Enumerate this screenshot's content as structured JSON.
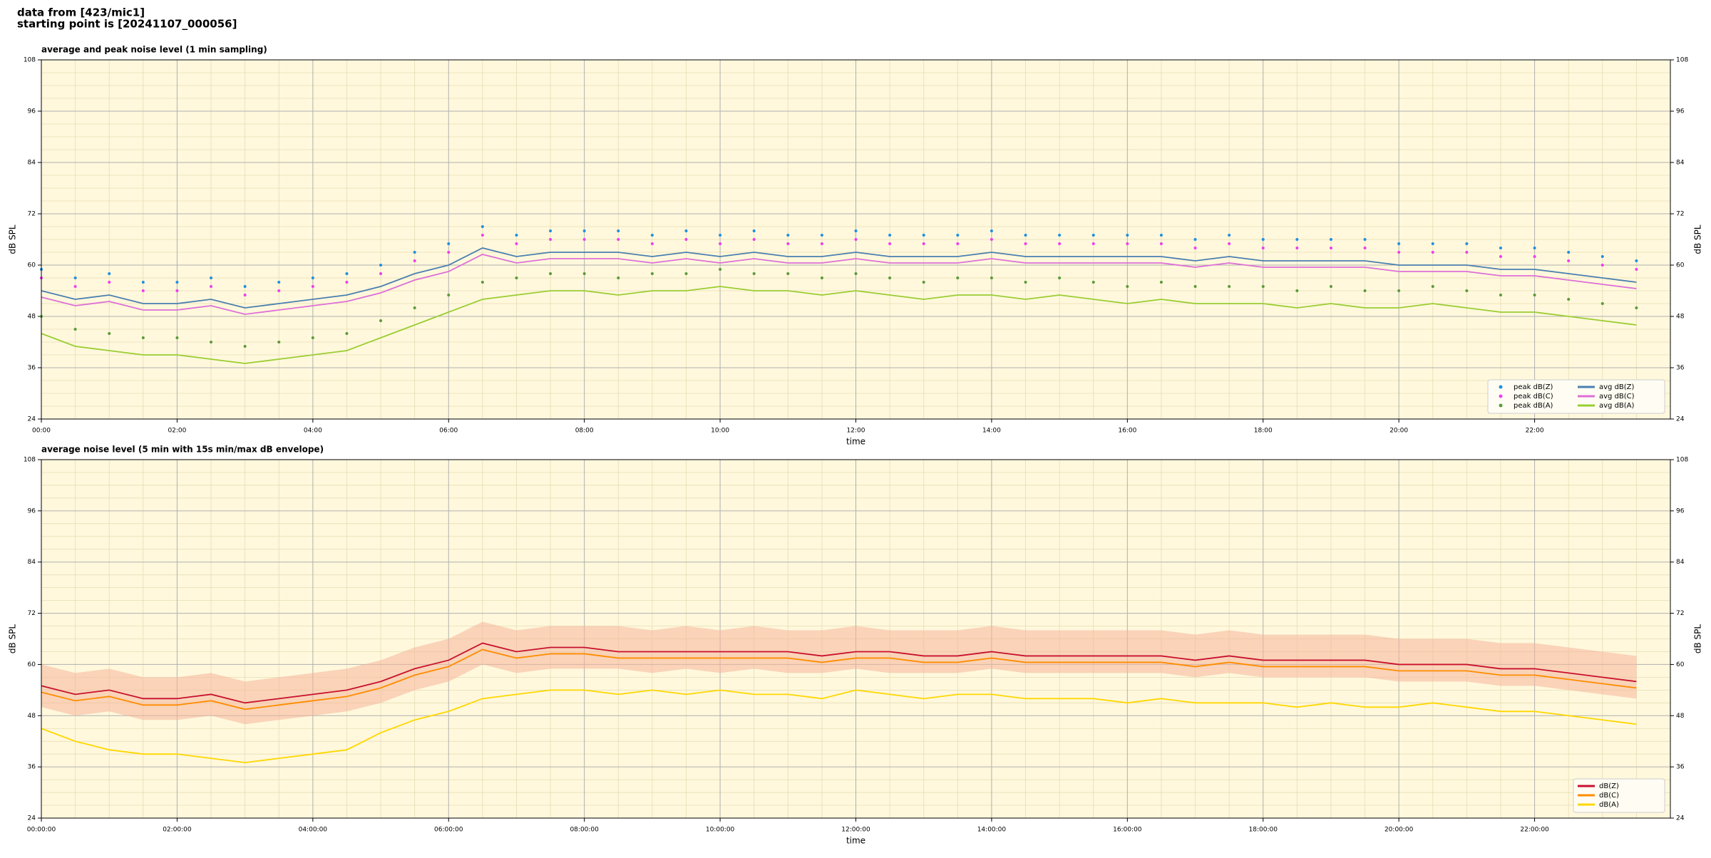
{
  "header": [
    "data from [423/mic1]",
    "starting point is [20241107_000056]"
  ],
  "chart_data": [
    {
      "type": "line",
      "title": "average and peak noise level (1 min sampling)",
      "xlabel": "time",
      "ylabel": "dB SPL",
      "x": [
        0,
        0.5,
        1,
        1.5,
        2,
        2.5,
        3,
        3.5,
        4,
        4.5,
        5,
        5.5,
        6,
        6.5,
        7,
        7.5,
        8,
        8.5,
        9,
        9.5,
        10,
        10.5,
        11,
        11.5,
        12,
        12.5,
        13,
        13.5,
        14,
        14.5,
        15,
        15.5,
        16,
        16.5,
        17,
        17.5,
        18,
        18.5,
        19,
        19.5,
        20,
        20.5,
        21,
        21.5,
        22,
        22.5,
        23,
        23.5
      ],
      "xlim": [
        0,
        24
      ],
      "xticks": [
        {
          "value": 0,
          "label": "00:00"
        },
        {
          "value": 2,
          "label": "02:00"
        },
        {
          "value": 4,
          "label": "04:00"
        },
        {
          "value": 6,
          "label": "06:00"
        },
        {
          "value": 8,
          "label": "08:00"
        },
        {
          "value": 10,
          "label": "10:00"
        },
        {
          "value": 12,
          "label": "12:00"
        },
        {
          "value": 14,
          "label": "14:00"
        },
        {
          "value": 16,
          "label": "16:00"
        },
        {
          "value": 18,
          "label": "18:00"
        },
        {
          "value": 20,
          "label": "20:00"
        },
        {
          "value": 22,
          "label": "22:00"
        }
      ],
      "ylim": [
        24,
        108
      ],
      "yticks": [
        24,
        36,
        48,
        60,
        72,
        84,
        96,
        108
      ],
      "grid": true,
      "legend": "lower right",
      "legend_columns": 2,
      "series": [
        {
          "name": "peak dB(Z)",
          "kind": "scatter",
          "color": "#1f8fe0",
          "values": [
            59,
            57,
            58,
            56,
            56,
            57,
            55,
            56,
            57,
            58,
            60,
            63,
            65,
            69,
            67,
            68,
            68,
            68,
            67,
            68,
            67,
            68,
            67,
            67,
            68,
            67,
            67,
            67,
            68,
            67,
            67,
            67,
            67,
            67,
            66,
            67,
            66,
            66,
            66,
            66,
            65,
            65,
            65,
            64,
            64,
            63,
            62,
            61
          ]
        },
        {
          "name": "peak dB(C)",
          "kind": "scatter",
          "color": "#f03cf0",
          "values": [
            57,
            55,
            56,
            54,
            54,
            55,
            53,
            54,
            55,
            56,
            58,
            61,
            63,
            67,
            65,
            66,
            66,
            66,
            65,
            66,
            65,
            66,
            65,
            65,
            66,
            65,
            65,
            65,
            66,
            65,
            65,
            65,
            65,
            65,
            64,
            65,
            64,
            64,
            64,
            64,
            63,
            63,
            63,
            62,
            62,
            61,
            60,
            59
          ]
        },
        {
          "name": "peak dB(A)",
          "kind": "scatter",
          "color": "#5a9a3a",
          "values": [
            48,
            45,
            44,
            43,
            43,
            42,
            41,
            42,
            43,
            44,
            47,
            50,
            53,
            56,
            57,
            58,
            58,
            57,
            58,
            58,
            59,
            58,
            58,
            57,
            58,
            57,
            56,
            57,
            57,
            56,
            57,
            56,
            55,
            56,
            55,
            55,
            55,
            54,
            55,
            54,
            54,
            55,
            54,
            53,
            53,
            52,
            51,
            50
          ]
        },
        {
          "name": "avg dB(Z)",
          "kind": "line",
          "color": "#4a7fb0",
          "values": [
            54,
            52,
            53,
            51,
            51,
            52,
            50,
            51,
            52,
            53,
            55,
            58,
            60,
            64,
            62,
            63,
            63,
            63,
            62,
            63,
            62,
            63,
            62,
            62,
            63,
            62,
            62,
            62,
            63,
            62,
            62,
            62,
            62,
            62,
            61,
            62,
            61,
            61,
            61,
            61,
            60,
            60,
            60,
            59,
            59,
            58,
            57,
            56
          ]
        },
        {
          "name": "avg dB(C)",
          "kind": "line",
          "color": "#dd6fd8",
          "values": [
            52.5,
            50.5,
            51.5,
            49.5,
            49.5,
            50.5,
            48.5,
            49.5,
            50.5,
            51.5,
            53.5,
            56.5,
            58.5,
            62.5,
            60.5,
            61.5,
            61.5,
            61.5,
            60.5,
            61.5,
            60.5,
            61.5,
            60.5,
            60.5,
            61.5,
            60.5,
            60.5,
            60.5,
            61.5,
            60.5,
            60.5,
            60.5,
            60.5,
            60.5,
            59.5,
            60.5,
            59.5,
            59.5,
            59.5,
            59.5,
            58.5,
            58.5,
            58.5,
            57.5,
            57.5,
            56.5,
            55.5,
            54.5
          ]
        },
        {
          "name": "avg dB(A)",
          "kind": "line",
          "color": "#9acd32",
          "values": [
            44,
            41,
            40,
            39,
            39,
            38,
            37,
            38,
            39,
            40,
            43,
            46,
            49,
            52,
            53,
            54,
            54,
            53,
            54,
            54,
            55,
            54,
            54,
            53,
            54,
            53,
            52,
            53,
            53,
            52,
            53,
            52,
            51,
            52,
            51,
            51,
            51,
            50,
            51,
            50,
            50,
            51,
            50,
            49,
            49,
            48,
            47,
            46
          ]
        }
      ]
    },
    {
      "type": "line",
      "title": "average noise level (5 min with 15s min/max dB envelope)",
      "xlabel": "time",
      "ylabel": "dB SPL",
      "x": [
        0,
        0.5,
        1,
        1.5,
        2,
        2.5,
        3,
        3.5,
        4,
        4.5,
        5,
        5.5,
        6,
        6.5,
        7,
        7.5,
        8,
        8.5,
        9,
        9.5,
        10,
        10.5,
        11,
        11.5,
        12,
        12.5,
        13,
        13.5,
        14,
        14.5,
        15,
        15.5,
        16,
        16.5,
        17,
        17.5,
        18,
        18.5,
        19,
        19.5,
        20,
        20.5,
        21,
        21.5,
        22,
        22.5,
        23,
        23.5
      ],
      "xlim": [
        0,
        24
      ],
      "xticks": [
        {
          "value": 0,
          "label": "00:00:00"
        },
        {
          "value": 2,
          "label": "02:00:00"
        },
        {
          "value": 4,
          "label": "04:00:00"
        },
        {
          "value": 6,
          "label": "06:00:00"
        },
        {
          "value": 8,
          "label": "08:00:00"
        },
        {
          "value": 10,
          "label": "10:00:00"
        },
        {
          "value": 12,
          "label": "12:00:00"
        },
        {
          "value": 14,
          "label": "14:00:00"
        },
        {
          "value": 16,
          "label": "16:00:00"
        },
        {
          "value": 18,
          "label": "18:00:00"
        },
        {
          "value": 20,
          "label": "20:00:00"
        },
        {
          "value": 22,
          "label": "22:00:00"
        }
      ],
      "ylim": [
        24,
        108
      ],
      "yticks": [
        24,
        36,
        48,
        60,
        72,
        84,
        96,
        108
      ],
      "grid": true,
      "legend": "lower right",
      "legend_columns": 1,
      "envelope": {
        "color": "#f5b49a",
        "min": [
          50,
          48,
          49,
          47,
          47,
          48,
          46,
          47,
          48,
          49,
          51,
          54,
          56,
          60,
          58,
          59,
          59,
          59,
          58,
          59,
          58,
          59,
          58,
          58,
          59,
          58,
          58,
          58,
          59,
          58,
          58,
          58,
          58,
          58,
          57,
          58,
          57,
          57,
          57,
          57,
          56,
          56,
          56,
          55,
          55,
          54,
          53,
          52
        ],
        "max": [
          60,
          58,
          59,
          57,
          57,
          58,
          56,
          57,
          58,
          59,
          61,
          64,
          66,
          70,
          68,
          69,
          69,
          69,
          68,
          69,
          68,
          69,
          68,
          68,
          69,
          68,
          68,
          68,
          69,
          68,
          68,
          68,
          68,
          68,
          67,
          68,
          67,
          67,
          67,
          67,
          66,
          66,
          66,
          65,
          65,
          64,
          63,
          62
        ]
      },
      "series": [
        {
          "name": "dB(Z)",
          "kind": "line",
          "color": "#c8102e",
          "values": [
            55,
            53,
            54,
            52,
            52,
            53,
            51,
            52,
            53,
            54,
            56,
            59,
            61,
            65,
            63,
            64,
            64,
            63,
            63,
            63,
            63,
            63,
            63,
            62,
            63,
            63,
            62,
            62,
            63,
            62,
            62,
            62,
            62,
            62,
            61,
            62,
            61,
            61,
            61,
            61,
            60,
            60,
            60,
            59,
            59,
            58,
            57,
            56
          ]
        },
        {
          "name": "dB(C)",
          "kind": "line",
          "color": "#ff8c00",
          "values": [
            53.5,
            51.5,
            52.5,
            50.5,
            50.5,
            51.5,
            49.5,
            50.5,
            51.5,
            52.5,
            54.5,
            57.5,
            59.5,
            63.5,
            61.5,
            62.5,
            62.5,
            61.5,
            61.5,
            61.5,
            61.5,
            61.5,
            61.5,
            60.5,
            61.5,
            61.5,
            60.5,
            60.5,
            61.5,
            60.5,
            60.5,
            60.5,
            60.5,
            60.5,
            59.5,
            60.5,
            59.5,
            59.5,
            59.5,
            59.5,
            58.5,
            58.5,
            58.5,
            57.5,
            57.5,
            56.5,
            55.5,
            54.5
          ]
        },
        {
          "name": "dB(A)",
          "kind": "line",
          "color": "#ffd700",
          "values": [
            45,
            42,
            40,
            39,
            39,
            38,
            37,
            38,
            39,
            40,
            44,
            47,
            49,
            52,
            53,
            54,
            54,
            53,
            54,
            53,
            54,
            53,
            53,
            52,
            54,
            53,
            52,
            53,
            53,
            52,
            52,
            52,
            51,
            52,
            51,
            51,
            51,
            50,
            51,
            50,
            50,
            51,
            50,
            49,
            49,
            48,
            47,
            46
          ]
        }
      ]
    }
  ]
}
